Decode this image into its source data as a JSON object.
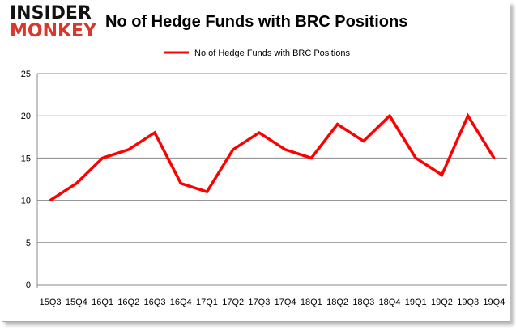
{
  "logo": {
    "line1": "INSIDER",
    "line2": "MONKEY"
  },
  "chart_data": {
    "type": "line",
    "title": "No of Hedge Funds with BRC Positions",
    "xlabel": "",
    "ylabel": "",
    "categories": [
      "15Q3",
      "15Q4",
      "16Q1",
      "16Q2",
      "16Q3",
      "16Q4",
      "17Q1",
      "17Q2",
      "17Q3",
      "17Q4",
      "18Q1",
      "18Q2",
      "18Q3",
      "18Q4",
      "19Q1",
      "19Q2",
      "19Q3",
      "19Q4"
    ],
    "series": [
      {
        "name": "No of Hedge Funds with BRC Positions",
        "color": "#ff0000",
        "values": [
          10,
          12,
          15,
          16,
          18,
          12,
          11,
          16,
          18,
          16,
          15,
          19,
          17,
          20,
          15,
          13,
          20,
          15
        ]
      }
    ],
    "ylim": [
      0,
      25
    ],
    "yticks": [
      0,
      5,
      10,
      15,
      20,
      25
    ],
    "grid": true,
    "legend": "top-center"
  }
}
